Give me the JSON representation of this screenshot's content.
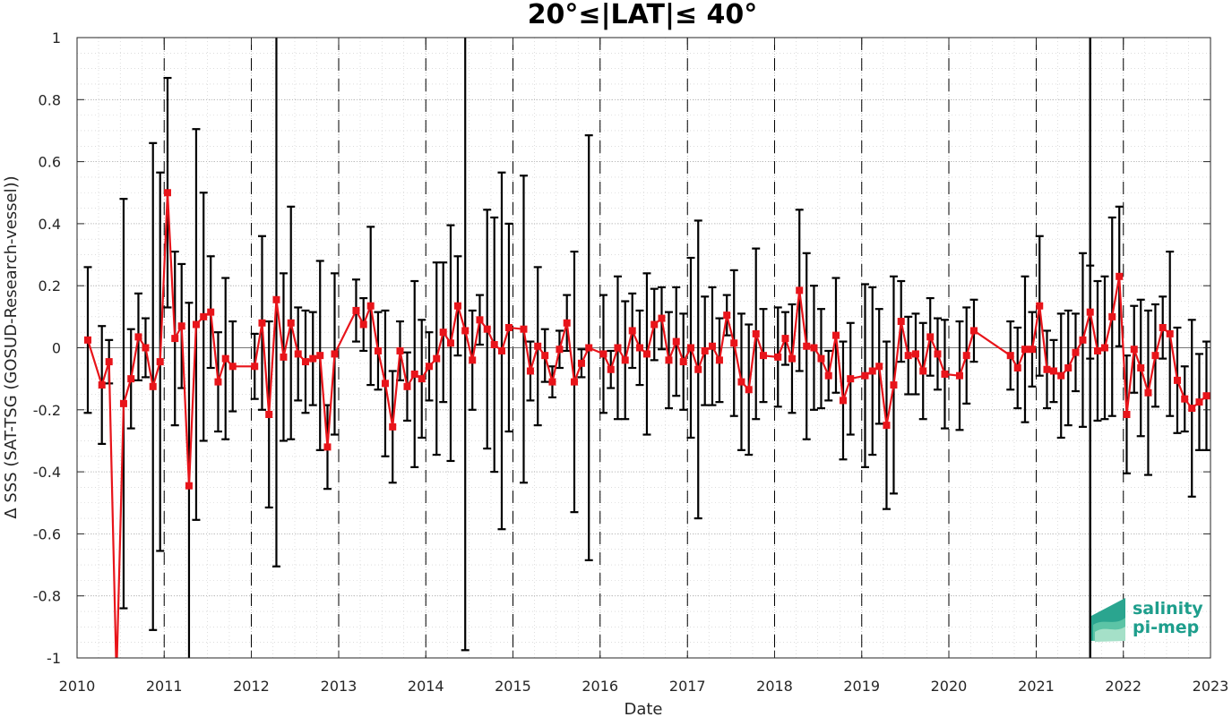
{
  "chart_data": {
    "type": "line",
    "title": "20°≤|LAT|≤ 40°",
    "xlabel": "Date",
    "ylabel": "Δ SSS (SAT-TSG (GOSUD-Research-vessel))",
    "xlim": [
      "2010-01-01",
      "2023-01-01"
    ],
    "ylim": [
      -1,
      1
    ],
    "x_ticks": [
      "2010",
      "2011",
      "2012",
      "2013",
      "2014",
      "2015",
      "2016",
      "2017",
      "2018",
      "2019",
      "2020",
      "2021",
      "2022",
      "2023"
    ],
    "y_ticks": [
      "-1",
      "-0.8",
      "-0.6",
      "-0.4",
      "-0.2",
      "0",
      "0.2",
      "0.4",
      "0.6",
      "0.8",
      "1"
    ],
    "grid": "dotted",
    "marker_color": "#e8141a",
    "line_color": "#e8141a",
    "errorbar_color": "#000000",
    "year_boundaries_dashed": [
      "2011",
      "2012",
      "2013",
      "2014",
      "2015",
      "2016",
      "2017",
      "2018",
      "2019",
      "2020",
      "2021",
      "2022"
    ],
    "solid_vertical_lines": [
      "2021-08-15"
    ],
    "series": [
      {
        "points": [
          {
            "x": "2010-02-15",
            "y": 0.025,
            "err": 0.235
          },
          {
            "x": "2010-04-15",
            "y": -0.12,
            "err": 0.19
          },
          {
            "x": "2010-05-15",
            "y": -0.045,
            "err": 0.07
          },
          {
            "x": "2010-06-15",
            "y": -1.06,
            "err": 0.0
          },
          {
            "x": "2010-07-15",
            "y": -0.18,
            "err": 0.66
          },
          {
            "x": "2010-08-15",
            "y": -0.1,
            "err": 0.16
          },
          {
            "x": "2010-09-15",
            "y": 0.035,
            "err": 0.14
          },
          {
            "x": "2010-10-15",
            "y": 0.0,
            "err": 0.095
          },
          {
            "x": "2010-11-15",
            "y": -0.125,
            "err": 0.785
          },
          {
            "x": "2010-12-15",
            "y": -0.045,
            "err": 0.61
          },
          {
            "x": "2011-01-15",
            "y": 0.5,
            "err": 0.37
          },
          {
            "x": "2011-02-15",
            "y": 0.03,
            "err": 0.28
          },
          {
            "x": "2011-03-15",
            "y": 0.07,
            "err": 0.2
          },
          {
            "x": "2011-04-15",
            "y": -0.445,
            "err": 0.59
          },
          {
            "x": "2011-05-15",
            "y": 0.075,
            "err": 0.63
          },
          {
            "x": "2011-06-15",
            "y": 0.1,
            "err": 0.4
          },
          {
            "x": "2011-07-15",
            "y": 0.115,
            "err": 0.18
          },
          {
            "x": "2011-08-15",
            "y": -0.11,
            "err": 0.16
          },
          {
            "x": "2011-09-15",
            "y": -0.035,
            "err": 0.26
          },
          {
            "x": "2011-10-15",
            "y": -0.06,
            "err": 0.145
          },
          {
            "x": "2012-01-15",
            "y": -0.06,
            "err": 0.105
          },
          {
            "x": "2012-02-15",
            "y": 0.08,
            "err": 0.28
          },
          {
            "x": "2012-03-15",
            "y": -0.215,
            "err": 0.3
          },
          {
            "x": "2012-04-15",
            "y": 0.155,
            "err": 0.86
          },
          {
            "x": "2012-05-15",
            "y": -0.03,
            "err": 0.27
          },
          {
            "x": "2012-06-15",
            "y": 0.08,
            "err": 0.375
          },
          {
            "x": "2012-07-15",
            "y": -0.02,
            "err": 0.15
          },
          {
            "x": "2012-08-15",
            "y": -0.045,
            "err": 0.165
          },
          {
            "x": "2012-09-15",
            "y": -0.035,
            "err": 0.15
          },
          {
            "x": "2012-10-15",
            "y": -0.025,
            "err": 0.305
          },
          {
            "x": "2012-11-15",
            "y": -0.32,
            "err": 0.135
          },
          {
            "x": "2012-12-15",
            "y": -0.02,
            "err": 0.26
          },
          {
            "x": "2013-03-15",
            "y": 0.12,
            "err": 0.1
          },
          {
            "x": "2013-04-15",
            "y": 0.075,
            "err": 0.085
          },
          {
            "x": "2013-05-15",
            "y": 0.135,
            "err": 0.255
          },
          {
            "x": "2013-06-15",
            "y": -0.01,
            "err": 0.125
          },
          {
            "x": "2013-07-15",
            "y": -0.115,
            "err": 0.235
          },
          {
            "x": "2013-08-15",
            "y": -0.255,
            "err": 0.18
          },
          {
            "x": "2013-09-15",
            "y": -0.01,
            "err": 0.095
          },
          {
            "x": "2013-10-15",
            "y": -0.125,
            "err": 0.11
          },
          {
            "x": "2013-11-15",
            "y": -0.085,
            "err": 0.3
          },
          {
            "x": "2013-12-15",
            "y": -0.1,
            "err": 0.19
          },
          {
            "x": "2014-01-15",
            "y": -0.06,
            "err": 0.11
          },
          {
            "x": "2014-02-15",
            "y": -0.035,
            "err": 0.31
          },
          {
            "x": "2014-03-15",
            "y": 0.05,
            "err": 0.225
          },
          {
            "x": "2014-04-15",
            "y": 0.015,
            "err": 0.38
          },
          {
            "x": "2014-05-15",
            "y": 0.135,
            "err": 0.16
          },
          {
            "x": "2014-06-15",
            "y": 0.055,
            "err": 1.03
          },
          {
            "x": "2014-07-15",
            "y": -0.04,
            "err": 0.16
          },
          {
            "x": "2014-08-15",
            "y": 0.09,
            "err": 0.08
          },
          {
            "x": "2014-09-15",
            "y": 0.06,
            "err": 0.385
          },
          {
            "x": "2014-10-15",
            "y": 0.01,
            "err": 0.41
          },
          {
            "x": "2014-11-15",
            "y": -0.01,
            "err": 0.575
          },
          {
            "x": "2014-12-15",
            "y": 0.065,
            "err": 0.335
          },
          {
            "x": "2015-02-15",
            "y": 0.06,
            "err": 0.495
          },
          {
            "x": "2015-03-15",
            "y": -0.075,
            "err": 0.095
          },
          {
            "x": "2015-04-15",
            "y": 0.005,
            "err": 0.255
          },
          {
            "x": "2015-05-15",
            "y": -0.025,
            "err": 0.085
          },
          {
            "x": "2015-06-15",
            "y": -0.11,
            "err": 0.05
          },
          {
            "x": "2015-07-15",
            "y": -0.005,
            "err": 0.06
          },
          {
            "x": "2015-08-15",
            "y": 0.08,
            "err": 0.09
          },
          {
            "x": "2015-09-15",
            "y": -0.11,
            "err": 0.42
          },
          {
            "x": "2015-10-15",
            "y": -0.05,
            "err": 0.045
          },
          {
            "x": "2015-11-15",
            "y": 0.0,
            "err": 0.685
          },
          {
            "x": "2016-01-15",
            "y": -0.02,
            "err": 0.19
          },
          {
            "x": "2016-02-15",
            "y": -0.07,
            "err": 0.06
          },
          {
            "x": "2016-03-15",
            "y": 0.0,
            "err": 0.23
          },
          {
            "x": "2016-04-15",
            "y": -0.04,
            "err": 0.19
          },
          {
            "x": "2016-05-15",
            "y": 0.055,
            "err": 0.12
          },
          {
            "x": "2016-06-15",
            "y": 0.0,
            "err": 0.12
          },
          {
            "x": "2016-07-15",
            "y": -0.02,
            "err": 0.26
          },
          {
            "x": "2016-08-15",
            "y": 0.075,
            "err": 0.115
          },
          {
            "x": "2016-09-15",
            "y": 0.095,
            "err": 0.1
          },
          {
            "x": "2016-10-15",
            "y": -0.04,
            "err": 0.155
          },
          {
            "x": "2016-11-15",
            "y": 0.02,
            "err": 0.175
          },
          {
            "x": "2016-12-15",
            "y": -0.045,
            "err": 0.155
          },
          {
            "x": "2017-01-15",
            "y": 0.0,
            "err": 0.29
          },
          {
            "x": "2017-02-15",
            "y": -0.07,
            "err": 0.48
          },
          {
            "x": "2017-03-15",
            "y": -0.01,
            "err": 0.175
          },
          {
            "x": "2017-04-15",
            "y": 0.005,
            "err": 0.19
          },
          {
            "x": "2017-05-15",
            "y": -0.04,
            "err": 0.135
          },
          {
            "x": "2017-06-15",
            "y": 0.105,
            "err": 0.065
          },
          {
            "x": "2017-07-15",
            "y": 0.015,
            "err": 0.235
          },
          {
            "x": "2017-08-15",
            "y": -0.11,
            "err": 0.22
          },
          {
            "x": "2017-09-15",
            "y": -0.135,
            "err": 0.21
          },
          {
            "x": "2017-10-15",
            "y": 0.045,
            "err": 0.275
          },
          {
            "x": "2017-11-15",
            "y": -0.025,
            "err": 0.15
          },
          {
            "x": "2018-01-15",
            "y": -0.03,
            "err": 0.16
          },
          {
            "x": "2018-02-15",
            "y": 0.03,
            "err": 0.085
          },
          {
            "x": "2018-03-15",
            "y": -0.035,
            "err": 0.175
          },
          {
            "x": "2018-04-15",
            "y": 0.185,
            "err": 0.26
          },
          {
            "x": "2018-05-15",
            "y": 0.005,
            "err": 0.3
          },
          {
            "x": "2018-06-15",
            "y": 0.0,
            "err": 0.2
          },
          {
            "x": "2018-07-15",
            "y": -0.035,
            "err": 0.16
          },
          {
            "x": "2018-08-15",
            "y": -0.09,
            "err": 0.08
          },
          {
            "x": "2018-09-15",
            "y": 0.04,
            "err": 0.185
          },
          {
            "x": "2018-10-15",
            "y": -0.17,
            "err": 0.19
          },
          {
            "x": "2018-11-15",
            "y": -0.1,
            "err": 0.18
          },
          {
            "x": "2019-01-15",
            "y": -0.09,
            "err": 0.295
          },
          {
            "x": "2019-02-15",
            "y": -0.075,
            "err": 0.27
          },
          {
            "x": "2019-03-15",
            "y": -0.06,
            "err": 0.185
          },
          {
            "x": "2019-04-15",
            "y": -0.25,
            "err": 0.27
          },
          {
            "x": "2019-05-15",
            "y": -0.12,
            "err": 0.35
          },
          {
            "x": "2019-06-15",
            "y": 0.085,
            "err": 0.13
          },
          {
            "x": "2019-07-15",
            "y": -0.025,
            "err": 0.125
          },
          {
            "x": "2019-08-15",
            "y": -0.02,
            "err": 0.13
          },
          {
            "x": "2019-09-15",
            "y": -0.075,
            "err": 0.155
          },
          {
            "x": "2019-10-15",
            "y": 0.035,
            "err": 0.125
          },
          {
            "x": "2019-11-15",
            "y": -0.02,
            "err": 0.115
          },
          {
            "x": "2019-12-15",
            "y": -0.085,
            "err": 0.175
          },
          {
            "x": "2020-02-15",
            "y": -0.09,
            "err": 0.175
          },
          {
            "x": "2020-03-15",
            "y": -0.025,
            "err": 0.155
          },
          {
            "x": "2020-04-15",
            "y": 0.055,
            "err": 0.1
          },
          {
            "x": "2020-09-15",
            "y": -0.025,
            "err": 0.11
          },
          {
            "x": "2020-10-15",
            "y": -0.065,
            "err": 0.13
          },
          {
            "x": "2020-11-15",
            "y": -0.005,
            "err": 0.235
          },
          {
            "x": "2020-12-15",
            "y": -0.005,
            "err": 0.12
          },
          {
            "x": "2021-01-15",
            "y": 0.135,
            "err": 0.225
          },
          {
            "x": "2021-02-15",
            "y": -0.07,
            "err": 0.125
          },
          {
            "x": "2021-03-15",
            "y": -0.075,
            "err": 0.1
          },
          {
            "x": "2021-04-15",
            "y": -0.09,
            "err": 0.2
          },
          {
            "x": "2021-05-15",
            "y": -0.065,
            "err": 0.185
          },
          {
            "x": "2021-06-15",
            "y": -0.015,
            "err": 0.125
          },
          {
            "x": "2021-07-15",
            "y": 0.025,
            "err": 0.28
          },
          {
            "x": "2021-08-15",
            "y": 0.115,
            "err": 0.15
          },
          {
            "x": "2021-09-15",
            "y": -0.01,
            "err": 0.225
          },
          {
            "x": "2021-10-15",
            "y": 0.0,
            "err": 0.23
          },
          {
            "x": "2021-11-15",
            "y": 0.1,
            "err": 0.32
          },
          {
            "x": "2021-12-15",
            "y": 0.23,
            "err": 0.225
          },
          {
            "x": "2022-01-15",
            "y": -0.215,
            "err": 0.19
          },
          {
            "x": "2022-02-15",
            "y": -0.005,
            "err": 0.14
          },
          {
            "x": "2022-03-15",
            "y": -0.065,
            "err": 0.22
          },
          {
            "x": "2022-04-15",
            "y": -0.145,
            "err": 0.265
          },
          {
            "x": "2022-05-15",
            "y": -0.025,
            "err": 0.165
          },
          {
            "x": "2022-06-15",
            "y": 0.065,
            "err": 0.1
          },
          {
            "x": "2022-07-15",
            "y": 0.045,
            "err": 0.265
          },
          {
            "x": "2022-08-15",
            "y": -0.105,
            "err": 0.17
          },
          {
            "x": "2022-09-15",
            "y": -0.165,
            "err": 0.105
          },
          {
            "x": "2022-10-15",
            "y": -0.195,
            "err": 0.285
          },
          {
            "x": "2022-11-15",
            "y": -0.175,
            "err": 0.155
          },
          {
            "x": "2022-12-15",
            "y": -0.155,
            "err": 0.175
          }
        ]
      }
    ]
  },
  "logo": {
    "line1": "salinity",
    "line2": "pi-mep",
    "color": "#1e9e8c"
  }
}
